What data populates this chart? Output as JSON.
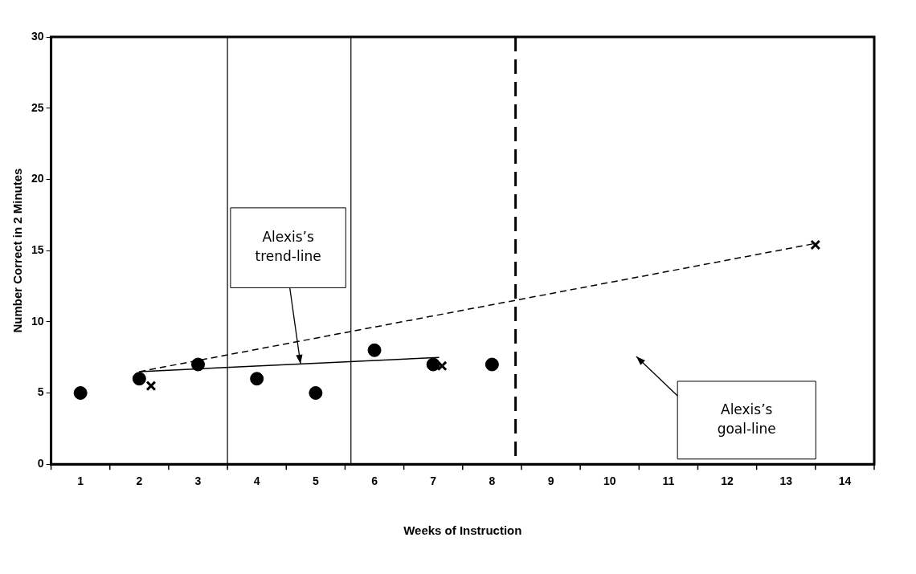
{
  "chart_data": {
    "type": "scatter",
    "xlabel": "Weeks of Instruction",
    "ylabel": "Number Correct in 2 Minutes",
    "xlim": [
      0.5,
      14.5
    ],
    "xticks": [
      1,
      2,
      3,
      4,
      5,
      6,
      7,
      8,
      9,
      10,
      11,
      12,
      13,
      14
    ],
    "ylim": [
      0,
      30
    ],
    "yticks": [
      0,
      5,
      10,
      15,
      20,
      25,
      30
    ],
    "grid": false,
    "legend": false,
    "series": [
      {
        "color": "#000000",
        "marker": "circle",
        "x": [
          1,
          2,
          3,
          4,
          5,
          6,
          7,
          8
        ],
        "values": [
          5,
          6,
          7,
          6,
          5,
          8,
          7,
          7
        ]
      },
      {
        "type": "line",
        "color": "#000000",
        "marker": "none",
        "line_style": "solid",
        "x": [
          2.0,
          7.1
        ],
        "values": [
          6.5,
          7.5
        ]
      },
      {
        "type": "line",
        "color": "#000000",
        "marker": "none",
        "line_style": "dashed",
        "x": [
          2.0,
          13.5
        ],
        "values": [
          6.5,
          15.5
        ]
      },
      {
        "color": "#000000",
        "marker": "cross",
        "x": [
          2.2,
          7.15,
          13.5
        ],
        "values": [
          5.5,
          6.9,
          15.4
        ]
      }
    ],
    "ref_lines": [
      {
        "axis": "x",
        "value": 3.5,
        "line_style": "solid",
        "color": "#000000"
      },
      {
        "axis": "x",
        "value": 5.6,
        "line_style": "solid",
        "color": "#000000"
      },
      {
        "axis": "x",
        "value": 8.4,
        "line_style": "dashed",
        "color": "#000000"
      }
    ],
    "annotations": [
      "Alexis’s trend-line",
      "Alexis’s goal-line"
    ]
  }
}
